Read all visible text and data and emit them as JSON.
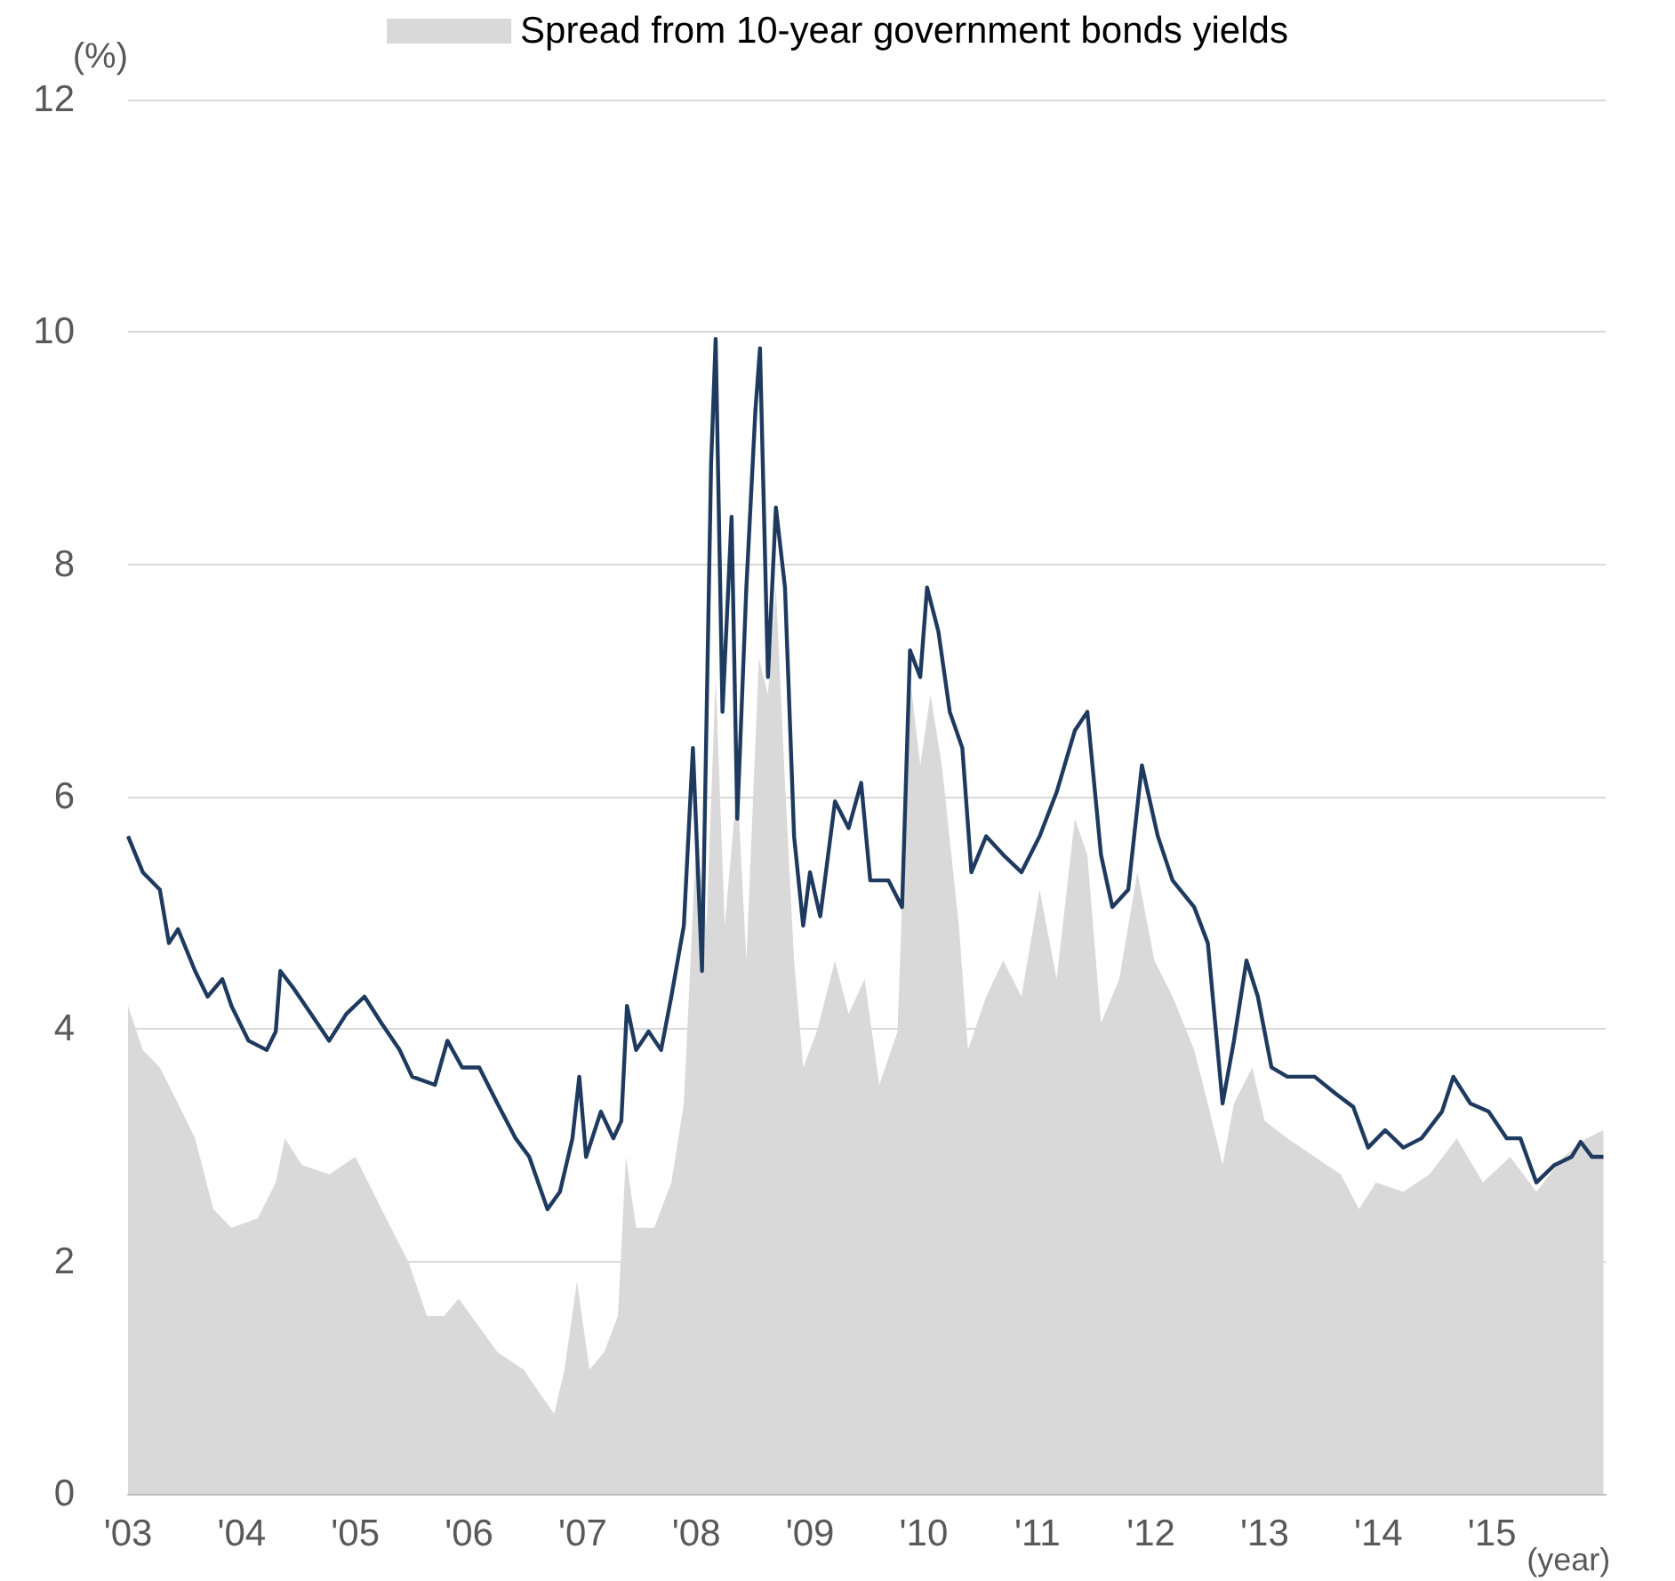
{
  "chart_data": {
    "type": "line",
    "xlabel": "(year)",
    "ylabel": "(%)",
    "xlim": [
      2003,
      2016
    ],
    "ylim": [
      0,
      12
    ],
    "xticks": [
      {
        "value": 2003,
        "label": "'03"
      },
      {
        "value": 2004,
        "label": "'04"
      },
      {
        "value": 2005,
        "label": "'05"
      },
      {
        "value": 2006,
        "label": "'06"
      },
      {
        "value": 2007,
        "label": "'07"
      },
      {
        "value": 2008,
        "label": "'08"
      },
      {
        "value": 2009,
        "label": "'09"
      },
      {
        "value": 2010,
        "label": "'10"
      },
      {
        "value": 2011,
        "label": "'11"
      },
      {
        "value": 2012,
        "label": "'12"
      },
      {
        "value": 2013,
        "label": "'13"
      },
      {
        "value": 2014,
        "label": "'14"
      },
      {
        "value": 2015,
        "label": "'15"
      }
    ],
    "yticks": [
      0,
      2,
      4,
      6,
      8,
      10,
      12
    ],
    "grid": "y",
    "legend": "top",
    "marker": "none",
    "series": [
      {
        "name": "Spread from 10-year government bonds yields",
        "type": "area",
        "color": "#d9d9d9",
        "x": [
          2003.0,
          2003.13,
          2003.28,
          2003.44,
          2003.59,
          2003.75,
          2003.91,
          2004.14,
          2004.3,
          2004.38,
          2004.53,
          2004.77,
          2005.0,
          2005.23,
          2005.47,
          2005.63,
          2005.78,
          2005.91,
          2006.02,
          2006.25,
          2006.48,
          2006.64,
          2006.75,
          2006.84,
          2006.95,
          2007.06,
          2007.19,
          2007.31,
          2007.38,
          2007.47,
          2007.63,
          2007.78,
          2007.89,
          2008.0,
          2008.09,
          2008.17,
          2008.25,
          2008.36,
          2008.44,
          2008.55,
          2008.63,
          2008.7,
          2008.78,
          2008.86,
          2008.94,
          2009.06,
          2009.22,
          2009.34,
          2009.48,
          2009.61,
          2009.77,
          2009.88,
          2009.97,
          2010.06,
          2010.16,
          2010.31,
          2010.39,
          2010.55,
          2010.7,
          2010.86,
          2011.02,
          2011.17,
          2011.33,
          2011.44,
          2011.56,
          2011.72,
          2011.88,
          2012.03,
          2012.19,
          2012.38,
          2012.5,
          2012.63,
          2012.73,
          2012.89,
          2013.0,
          2013.2,
          2013.44,
          2013.67,
          2013.83,
          2013.98,
          2014.22,
          2014.45,
          2014.69,
          2014.92,
          2015.16,
          2015.39,
          2015.63,
          2015.83,
          2015.98
        ],
        "values": [
          4.2,
          3.82,
          3.67,
          3.36,
          3.06,
          2.45,
          2.29,
          2.37,
          2.68,
          3.06,
          2.83,
          2.75,
          2.9,
          2.45,
          1.99,
          1.53,
          1.53,
          1.68,
          1.53,
          1.22,
          1.07,
          0.84,
          0.69,
          1.07,
          1.83,
          1.07,
          1.22,
          1.53,
          2.9,
          2.29,
          2.29,
          2.68,
          3.36,
          5.66,
          4.89,
          7.03,
          4.89,
          6.12,
          4.59,
          7.19,
          6.88,
          7.8,
          6.12,
          4.59,
          3.67,
          3.98,
          4.59,
          4.13,
          4.43,
          3.52,
          3.98,
          7.03,
          6.27,
          6.88,
          6.27,
          4.89,
          3.82,
          4.28,
          4.59,
          4.28,
          5.2,
          4.43,
          5.81,
          5.5,
          4.05,
          4.43,
          5.35,
          4.59,
          4.28,
          3.82,
          3.36,
          2.83,
          3.36,
          3.67,
          3.21,
          3.06,
          2.9,
          2.75,
          2.45,
          2.68,
          2.6,
          2.75,
          3.06,
          2.68,
          2.9,
          2.6,
          2.9,
          3.06,
          3.13
        ]
      },
      {
        "color": "#1f3a5f",
        "x": [
          2003.0,
          2003.13,
          2003.28,
          2003.36,
          2003.44,
          2003.59,
          2003.7,
          2003.83,
          2003.91,
          2004.06,
          2004.22,
          2004.3,
          2004.34,
          2004.45,
          2004.61,
          2004.77,
          2004.92,
          2005.08,
          2005.23,
          2005.39,
          2005.5,
          2005.7,
          2005.81,
          2005.94,
          2006.09,
          2006.25,
          2006.41,
          2006.53,
          2006.69,
          2006.8,
          2006.91,
          2006.97,
          2007.03,
          2007.16,
          2007.27,
          2007.34,
          2007.39,
          2007.47,
          2007.58,
          2007.69,
          2007.78,
          2007.89,
          2007.97,
          2008.05,
          2008.13,
          2008.17,
          2008.23,
          2008.31,
          2008.36,
          2008.44,
          2008.52,
          2008.56,
          2008.63,
          2008.7,
          2008.78,
          2008.86,
          2008.94,
          2009.0,
          2009.09,
          2009.22,
          2009.34,
          2009.45,
          2009.53,
          2009.69,
          2009.81,
          2009.88,
          2009.97,
          2010.03,
          2010.13,
          2010.23,
          2010.34,
          2010.42,
          2010.55,
          2010.7,
          2010.86,
          2011.02,
          2011.17,
          2011.33,
          2011.44,
          2011.56,
          2011.66,
          2011.8,
          2011.92,
          2012.06,
          2012.19,
          2012.38,
          2012.5,
          2012.63,
          2012.73,
          2012.84,
          2012.94,
          2013.06,
          2013.2,
          2013.44,
          2013.63,
          2013.78,
          2013.91,
          2014.06,
          2014.22,
          2014.38,
          2014.56,
          2014.66,
          2014.81,
          2014.97,
          2015.13,
          2015.25,
          2015.39,
          2015.55,
          2015.7,
          2015.78,
          2015.88,
          2015.98
        ],
        "values": [
          5.66,
          5.35,
          5.2,
          4.74,
          4.86,
          4.5,
          4.28,
          4.43,
          4.2,
          3.9,
          3.82,
          3.98,
          4.5,
          4.36,
          4.13,
          3.9,
          4.13,
          4.28,
          4.05,
          3.82,
          3.59,
          3.52,
          3.9,
          3.67,
          3.67,
          3.36,
          3.06,
          2.9,
          2.45,
          2.6,
          3.06,
          3.59,
          2.9,
          3.29,
          3.06,
          3.21,
          4.2,
          3.82,
          3.98,
          3.82,
          4.28,
          4.89,
          6.42,
          4.5,
          8.87,
          9.94,
          6.73,
          8.41,
          5.81,
          7.8,
          9.33,
          9.86,
          7.03,
          8.49,
          7.8,
          5.66,
          4.89,
          5.35,
          4.97,
          5.96,
          5.73,
          6.12,
          5.28,
          5.28,
          5.05,
          7.26,
          7.03,
          7.8,
          7.42,
          6.73,
          6.42,
          5.35,
          5.66,
          5.5,
          5.35,
          5.66,
          6.04,
          6.57,
          6.73,
          5.5,
          5.05,
          5.2,
          6.27,
          5.66,
          5.28,
          5.05,
          4.74,
          3.36,
          3.9,
          4.59,
          4.28,
          3.67,
          3.59,
          3.59,
          3.44,
          3.33,
          2.98,
          3.13,
          2.98,
          3.06,
          3.29,
          3.59,
          3.36,
          3.29,
          3.06,
          3.06,
          2.68,
          2.83,
          2.9,
          3.03,
          2.9,
          2.9
        ]
      }
    ]
  }
}
